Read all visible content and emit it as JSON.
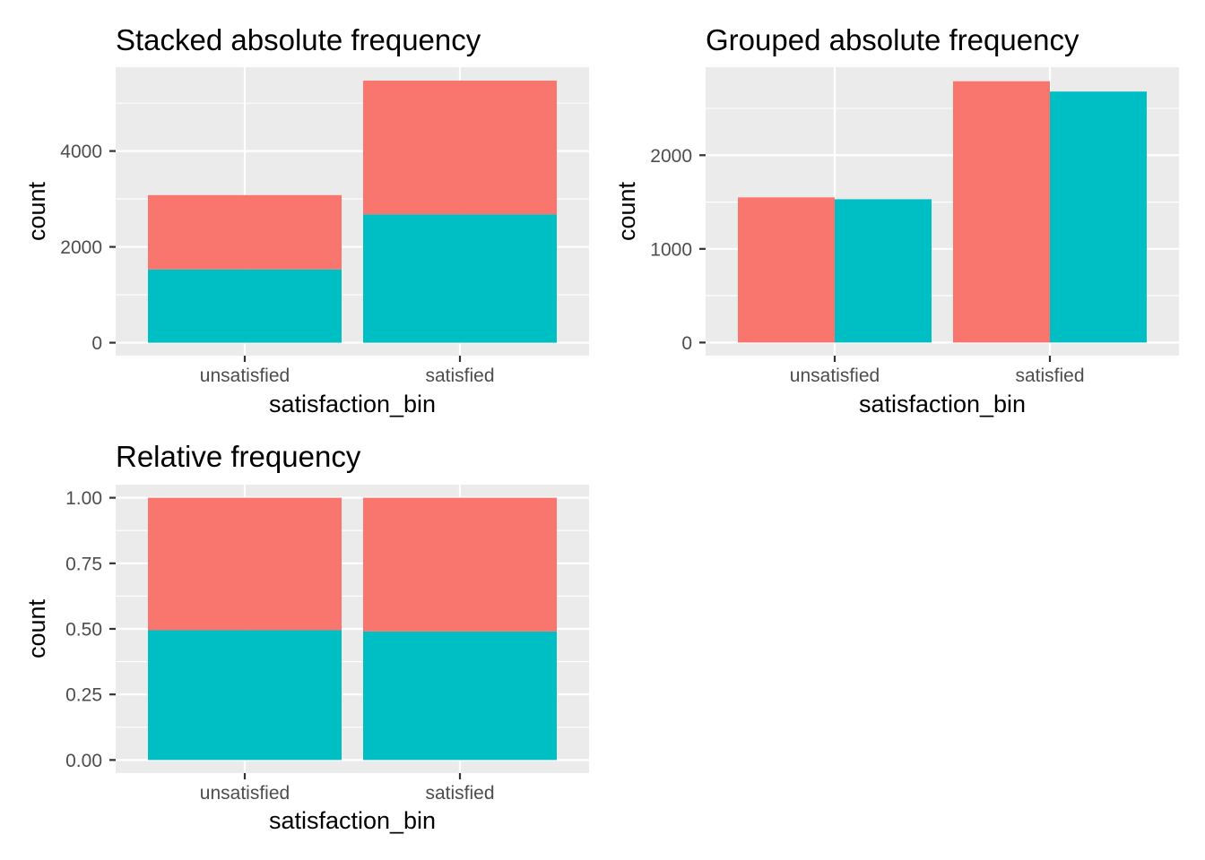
{
  "colors": {
    "series_a": "#F8766D",
    "series_b": "#00BFC4",
    "panel_background": "#EBEBEB",
    "grid": "#FFFFFF",
    "tick_label": "#4D4D4D",
    "text": "#000000"
  },
  "chart_data": [
    {
      "type": "bar",
      "mode": "stacked",
      "title": "Stacked absolute frequency",
      "xlabel": "satisfaction_bin",
      "ylabel": "count",
      "categories": [
        "unsatisfied",
        "satisfied"
      ],
      "series": [
        {
          "values": [
            1550,
            2790
          ],
          "color": "#F8766D"
        },
        {
          "values": [
            1530,
            2680
          ],
          "color": "#00BFC4"
        }
      ],
      "ylim": [
        -270,
        5750
      ],
      "yticks": [
        0,
        2000,
        4000
      ],
      "ytick_labels": [
        "0",
        "2000",
        "4000"
      ],
      "grid": true,
      "legend": "none"
    },
    {
      "type": "bar",
      "mode": "grouped",
      "title": "Grouped absolute frequency",
      "xlabel": "satisfaction_bin",
      "ylabel": "count",
      "categories": [
        "unsatisfied",
        "satisfied"
      ],
      "series": [
        {
          "values": [
            1550,
            2790
          ],
          "color": "#F8766D"
        },
        {
          "values": [
            1530,
            2680
          ],
          "color": "#00BFC4"
        }
      ],
      "ylim": [
        -140,
        2940
      ],
      "yticks": [
        0,
        1000,
        2000
      ],
      "ytick_labels": [
        "0",
        "1000",
        "2000"
      ],
      "grid": true,
      "legend": "none"
    },
    {
      "type": "bar",
      "mode": "fill",
      "title": "Relative frequency",
      "xlabel": "satisfaction_bin",
      "ylabel": "count",
      "categories": [
        "unsatisfied",
        "satisfied"
      ],
      "series": [
        {
          "values": [
            0.505,
            0.51
          ],
          "color": "#F8766D"
        },
        {
          "values": [
            0.495,
            0.49
          ],
          "color": "#00BFC4"
        }
      ],
      "ylim": [
        -0.05,
        1.05
      ],
      "yticks": [
        0,
        0.25,
        0.5,
        0.75,
        1.0
      ],
      "ytick_labels": [
        "0.00",
        "0.25",
        "0.50",
        "0.75",
        "1.00"
      ],
      "grid": true,
      "legend": "none"
    }
  ]
}
